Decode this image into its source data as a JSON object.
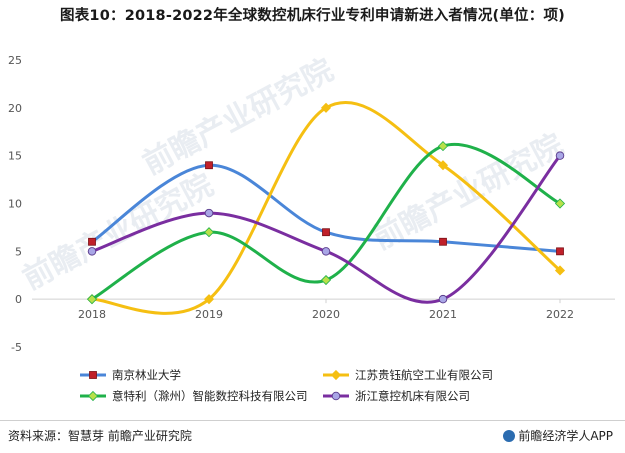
{
  "title": "图表10：2018-2022年全球数控机床行业专利申请新进入者情况(单位：项)",
  "source": "资料来源：智慧芽 前瞻产业研究院",
  "brand": "前瞻经济学人APP",
  "watermark": "前瞻产业研究院",
  "chart_data": {
    "type": "line",
    "title": "图表10：2018-2022年全球数控机床行业专利申请新进入者情况(单位：项)",
    "xlabel": "",
    "ylabel": "",
    "categories": [
      "2018",
      "2019",
      "2020",
      "2021",
      "2022"
    ],
    "yticks": [
      "25",
      "20",
      "15",
      "10",
      "5",
      "0",
      "-5"
    ],
    "ylim": [
      -5,
      25
    ],
    "grid": false,
    "smooth": true,
    "legend_position": "bottom",
    "series": [
      {
        "name": "南京林业大学",
        "values": [
          6,
          14,
          7,
          6,
          5
        ],
        "color": "#4a86d8",
        "marker": "square",
        "marker_color": "#c0202a"
      },
      {
        "name": "江苏贵钰航空工业有限公司",
        "values": [
          0,
          0,
          20,
          14,
          3
        ],
        "color": "#f5bf12",
        "marker": "diamond",
        "marker_color": "#f5bf12"
      },
      {
        "name": "意特利（滁州）智能数控科技有限公司",
        "values": [
          0,
          7,
          2,
          16,
          10
        ],
        "color": "#1fb14a",
        "marker": "diamond",
        "marker_color": "#b8e04a"
      },
      {
        "name": "浙江意控机床有限公司",
        "values": [
          5,
          9,
          5,
          0,
          15
        ],
        "color": "#7a2ea0",
        "marker": "circle",
        "marker_color": "#a9a6e6"
      }
    ]
  }
}
